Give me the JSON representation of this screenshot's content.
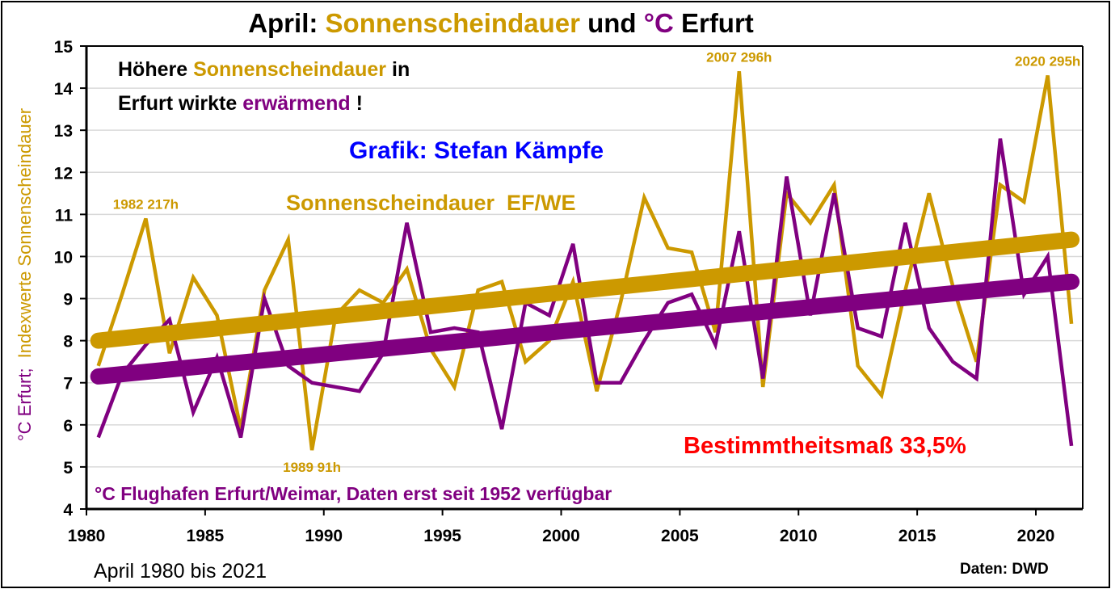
{
  "title": {
    "part1": "April:",
    "part2": "Sonnenscheindauer",
    "part3": "und",
    "part4": "°C",
    "part5": "Erfurt"
  },
  "notes": {
    "line1_a": "Höhere",
    "line1_b": "Sonnenscheindauer",
    "line1_c": "in",
    "line2_a": "Erfurt wirkte",
    "line2_b": "erwärmend",
    "line2_c": "!",
    "author": "Grafik: Stefan Kämpfe",
    "series_label": "Sonnenscheindauer  EF/WE",
    "r2": "Bestimmtheitsmaß 33,5%",
    "station": "°C Flughafen Erfurt/Weimar, Daten erst seit 1952 verfügbar",
    "period": "April 1980 bis 2021",
    "source": "Daten: DWD"
  },
  "colors": {
    "gold": "#CC9900",
    "purple": "#800080",
    "blue": "#0000FF",
    "red": "#FF0000",
    "grid": "#D9D9D9"
  },
  "chart_data": {
    "type": "line",
    "ylabel_part1": "°C  Erfurt;",
    "ylabel_part2": "Indexwerte Sonnenscheindauer",
    "ylim": [
      4,
      15
    ],
    "yticks": [
      "4",
      "5",
      "6",
      "7",
      "8",
      "9",
      "10",
      "11",
      "12",
      "13",
      "14",
      "15"
    ],
    "xlim": [
      1980,
      2022
    ],
    "xticks": [
      "1980",
      "1985",
      "1990",
      "1995",
      "2000",
      "2005",
      "2010",
      "2015",
      "2020"
    ],
    "grid": true,
    "x": [
      1980,
      1981,
      1982,
      1983,
      1984,
      1985,
      1986,
      1987,
      1988,
      1989,
      1990,
      1991,
      1992,
      1993,
      1994,
      1995,
      1996,
      1997,
      1998,
      1999,
      2000,
      2001,
      2002,
      2003,
      2004,
      2005,
      2006,
      2007,
      2008,
      2009,
      2010,
      2011,
      2012,
      2013,
      2014,
      2015,
      2016,
      2017,
      2018,
      2019,
      2020,
      2021
    ],
    "series": [
      {
        "name": "Sonnenscheindauer EF/WE (Index)",
        "color": "#CC9900",
        "values": [
          7.4,
          9.1,
          10.9,
          7.7,
          9.5,
          8.6,
          5.9,
          9.2,
          10.4,
          5.4,
          8.6,
          9.2,
          8.9,
          9.7,
          7.8,
          6.9,
          9.2,
          9.4,
          7.5,
          8.0,
          9.4,
          6.8,
          8.9,
          11.4,
          10.2,
          10.1,
          8.2,
          14.4,
          6.9,
          11.5,
          10.8,
          11.7,
          7.4,
          6.7,
          9.2,
          11.5,
          9.3,
          7.5,
          11.7,
          11.3,
          14.3,
          8.4
        ],
        "trend": [
          8.0,
          10.4
        ]
      },
      {
        "name": "°C Erfurt",
        "color": "#800080",
        "values": [
          5.7,
          7.2,
          7.9,
          8.5,
          6.3,
          7.6,
          5.7,
          9.0,
          7.4,
          7.0,
          6.9,
          6.8,
          7.7,
          10.8,
          8.2,
          8.3,
          8.2,
          5.9,
          8.9,
          8.6,
          10.3,
          7.0,
          7.0,
          8.0,
          8.9,
          9.1,
          7.9,
          10.6,
          7.1,
          11.9,
          8.6,
          11.5,
          8.3,
          8.1,
          10.8,
          8.3,
          7.5,
          7.1,
          12.8,
          9.1,
          10.0,
          5.5
        ],
        "trend": [
          7.15,
          9.4
        ]
      }
    ],
    "annotations": [
      {
        "year": 1982,
        "text": "1982 217h",
        "anchor_value": 10.9,
        "pos": "above"
      },
      {
        "year": 1989,
        "text": "1989 91h",
        "anchor_value": 5.4,
        "pos": "below"
      },
      {
        "year": 2007,
        "text": "2007 296h",
        "anchor_value": 14.4,
        "pos": "above"
      },
      {
        "year": 2020,
        "text": "2020 295h",
        "anchor_value": 14.3,
        "pos": "above"
      }
    ]
  }
}
